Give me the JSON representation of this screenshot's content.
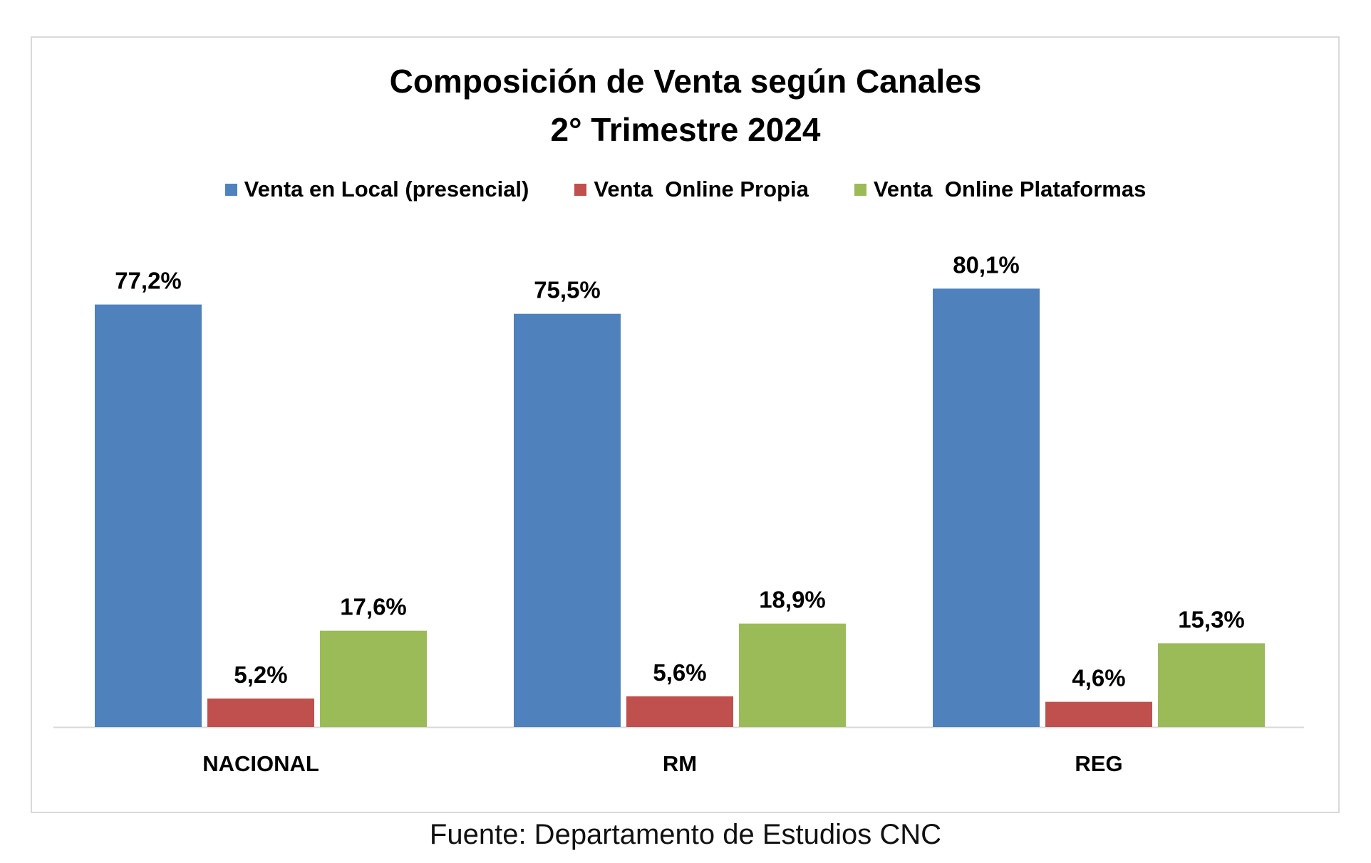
{
  "title_line1": "Composición de Venta según Canales",
  "title_line2": "2° Trimestre 2024",
  "source": "Fuente: Departamento de Estudios CNC",
  "chart_data": {
    "type": "bar",
    "title": "Composición de Venta según Canales 2° Trimestre 2024",
    "categories": [
      "NACIONAL",
      "RM",
      "REG"
    ],
    "series": [
      {
        "name": "Venta en Local (presencial)",
        "color": "#4f81bd",
        "values": [
          77.2,
          75.5,
          80.1
        ],
        "labels": [
          "77,2%",
          "75,5%",
          "80,1%"
        ]
      },
      {
        "name": "Venta  Online Propia",
        "color": "#c0504d",
        "values": [
          5.2,
          5.6,
          4.6
        ],
        "labels": [
          "5,2%",
          "5,6%",
          "4,6%"
        ]
      },
      {
        "name": "Venta  Online Plataformas",
        "color": "#9bbb59",
        "values": [
          17.6,
          18.9,
          15.3
        ],
        "labels": [
          "17,6%",
          "18,9%",
          "15,3%"
        ]
      }
    ],
    "ylim": [
      0,
      100
    ],
    "legend": "top",
    "grid": false
  }
}
